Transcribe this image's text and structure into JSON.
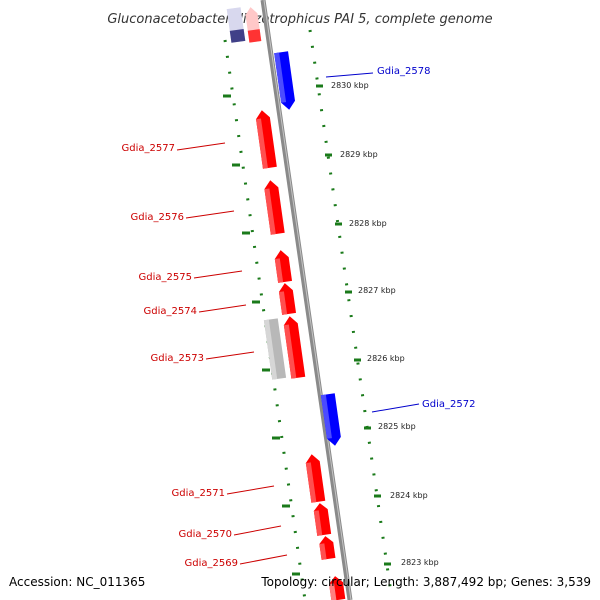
{
  "title": "Gluconacetobacter diazotrophicus PAI 5, complete genome",
  "footer": {
    "accession": "Accession: NC_011365",
    "summary": "Topology: circular; Length: 3,887,492 bp; Genes: 3,539"
  },
  "colors": {
    "forward": "#ff0000",
    "reverse": "#0000ff",
    "pseudo": "#bbbbbb",
    "ticks": "#1a7a1a",
    "backbone": "#808080"
  },
  "ruler": [
    {
      "label": "2830 kbp"
    },
    {
      "label": "2829 kbp"
    },
    {
      "label": "2828 kbp"
    },
    {
      "label": "2827 kbp"
    },
    {
      "label": "2826 kbp"
    },
    {
      "label": "2825 kbp"
    },
    {
      "label": "2824 kbp"
    },
    {
      "label": "2823 kbp"
    }
  ],
  "genes": [
    {
      "name": "Gdia_2578",
      "strand": "reverse"
    },
    {
      "name": "Gdia_2577",
      "strand": "forward"
    },
    {
      "name": "Gdia_2576",
      "strand": "forward"
    },
    {
      "name": "Gdia_2575",
      "strand": "forward"
    },
    {
      "name": "Gdia_2574",
      "strand": "forward"
    },
    {
      "name": "Gdia_2573",
      "strand": "forward"
    },
    {
      "name": "Gdia_2572",
      "strand": "reverse"
    },
    {
      "name": "Gdia_2571",
      "strand": "forward"
    },
    {
      "name": "Gdia_2570",
      "strand": "forward"
    },
    {
      "name": "Gdia_2569",
      "strand": "forward"
    }
  ]
}
